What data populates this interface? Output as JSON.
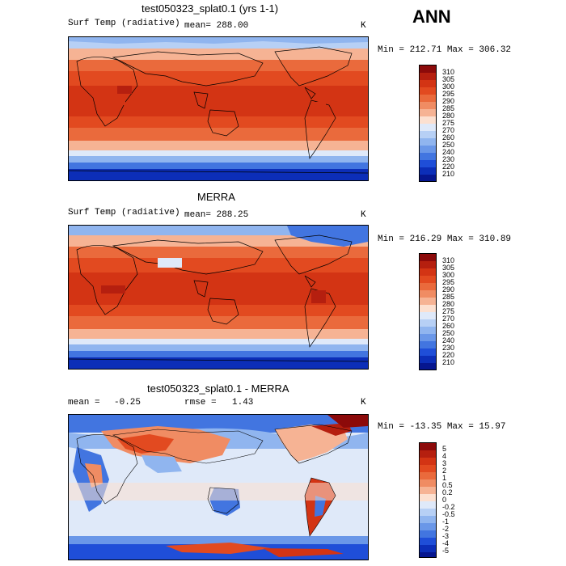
{
  "season": "ANN",
  "panels": [
    {
      "title": "test050323_splat0.1 (yrs 1-1)",
      "variable": "Surf Temp (radiative)",
      "mean_text": "mean= 288.00",
      "units": "K",
      "minmax": "Min = 212.71 Max = 306.32",
      "levels": [
        "310",
        "305",
        "300",
        "295",
        "290",
        "285",
        "280",
        "275",
        "270",
        "260",
        "250",
        "240",
        "230",
        "220",
        "210"
      ],
      "colors": [
        "#8c0a0a",
        "#b51f0f",
        "#d33414",
        "#e24a20",
        "#ea6a3c",
        "#f08c63",
        "#f6b394",
        "#fce0d0",
        "#dfe9f9",
        "#b7d0f5",
        "#90b5ef",
        "#6a97e8",
        "#4275e0",
        "#1f4ed8",
        "#0c2eb8",
        "#06168f"
      ]
    },
    {
      "title": "MERRA",
      "variable": "Surf Temp (radiative)",
      "mean_text": "mean= 288.25",
      "units": "K",
      "minmax": "Min = 216.29 Max = 310.89",
      "levels": [
        "310",
        "305",
        "300",
        "295",
        "290",
        "285",
        "280",
        "275",
        "270",
        "260",
        "250",
        "240",
        "230",
        "220",
        "210"
      ],
      "colors": [
        "#8c0a0a",
        "#b51f0f",
        "#d33414",
        "#e24a20",
        "#ea6a3c",
        "#f08c63",
        "#f6b394",
        "#fce0d0",
        "#dfe9f9",
        "#b7d0f5",
        "#90b5ef",
        "#6a97e8",
        "#4275e0",
        "#1f4ed8",
        "#0c2eb8",
        "#06168f"
      ]
    },
    {
      "title": "test050323_splat0.1 - MERRA",
      "mean_label": "mean =",
      "mean_value": "-0.25",
      "rmse_label": "rmse =",
      "rmse_value": "1.43",
      "units": "K",
      "minmax": "Min = -13.35 Max =  15.97",
      "levels": [
        "5",
        "4",
        "3",
        "2",
        "1",
        "0.5",
        "0.2",
        "0",
        "-0.2",
        "-0.5",
        "-1",
        "-2",
        "-3",
        "-4",
        "-5"
      ],
      "colors": [
        "#8c0a0a",
        "#b51f0f",
        "#d33414",
        "#e24a20",
        "#ea6a3c",
        "#f08c63",
        "#f6b394",
        "#fce0d0",
        "#dfe9f9",
        "#b7d0f5",
        "#90b5ef",
        "#6a97e8",
        "#4275e0",
        "#1f4ed8",
        "#0c2eb8",
        "#06168f"
      ]
    }
  ]
}
